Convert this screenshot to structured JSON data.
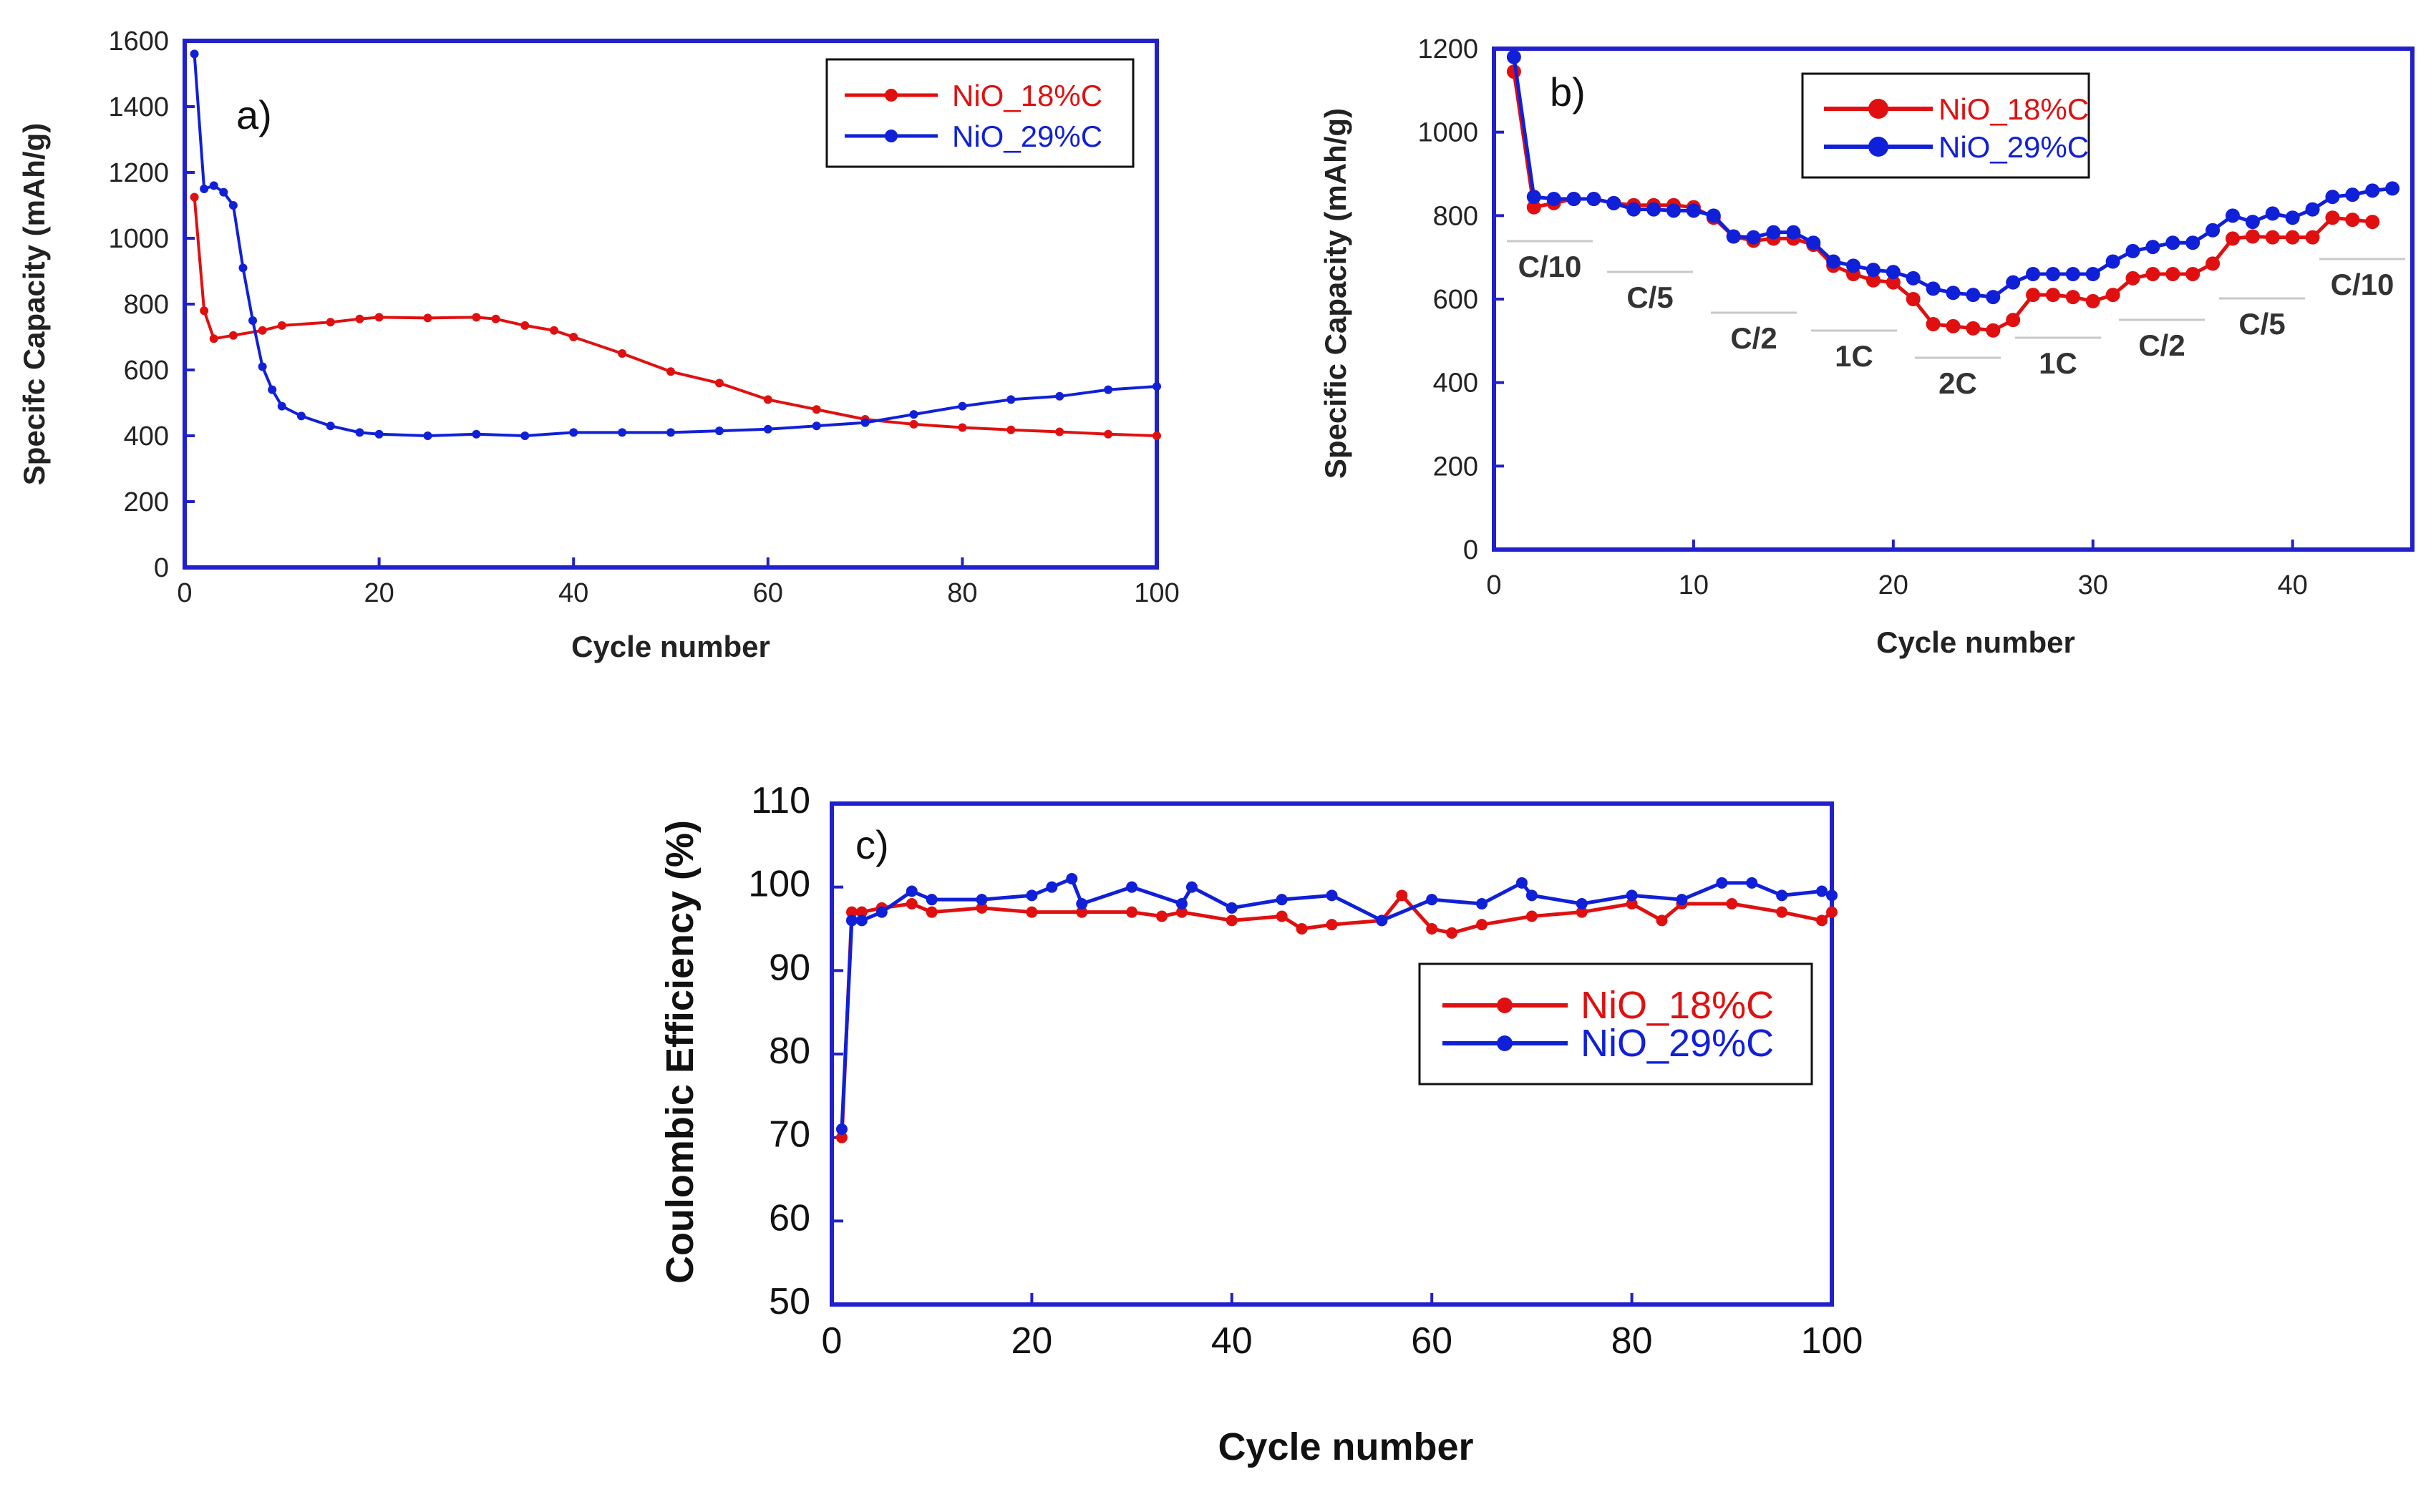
{
  "colors": {
    "red": "#e01010",
    "blue": "#1020d8",
    "frame": "#2020cc"
  },
  "chart_data": [
    {
      "type": "line",
      "panel": "a)",
      "xlabel": "Cycle number",
      "ylabel": "Specifc Capacity (mAh/g)",
      "xlim": [
        0,
        100
      ],
      "ylim": [
        0,
        1600
      ],
      "xticks": [
        0,
        20,
        40,
        60,
        80,
        100
      ],
      "yticks": [
        0,
        200,
        400,
        600,
        800,
        1000,
        1200,
        1400,
        1600
      ],
      "legend_position": "top-right",
      "series": [
        {
          "name": "NiO_18%C",
          "color": "#e01010",
          "x": [
            1,
            2,
            3,
            5,
            8,
            10,
            15,
            18,
            20,
            25,
            30,
            32,
            35,
            38,
            40,
            45,
            50,
            55,
            60,
            65,
            70,
            75,
            80,
            85,
            90,
            95,
            100
          ],
          "y": [
            1125,
            780,
            695,
            705,
            720,
            735,
            745,
            755,
            760,
            758,
            760,
            755,
            735,
            720,
            700,
            650,
            595,
            560,
            510,
            480,
            450,
            435,
            425,
            418,
            412,
            405,
            400
          ]
        },
        {
          "name": "NiO_29%C",
          "color": "#1020d8",
          "x": [
            1,
            2,
            3,
            4,
            5,
            6,
            7,
            8,
            9,
            10,
            12,
            15,
            18,
            20,
            25,
            30,
            35,
            40,
            45,
            50,
            55,
            60,
            65,
            70,
            75,
            80,
            85,
            90,
            95,
            100
          ],
          "y": [
            1560,
            1150,
            1160,
            1140,
            1100,
            910,
            750,
            610,
            540,
            490,
            460,
            430,
            410,
            405,
            400,
            405,
            400,
            410,
            410,
            410,
            415,
            420,
            430,
            440,
            465,
            490,
            510,
            520,
            540,
            550
          ]
        }
      ]
    },
    {
      "type": "line",
      "panel": "b)",
      "xlabel": "Cycle number",
      "ylabel": "Specific Capacity (mAh/g)",
      "xlim": [
        0,
        46
      ],
      "ylim": [
        0,
        1200
      ],
      "xticks": [
        0,
        10,
        20,
        30,
        40
      ],
      "yticks": [
        0,
        200,
        400,
        600,
        800,
        1000,
        1200
      ],
      "legend_position": "top-center",
      "rates": [
        "C/10",
        "C/5",
        "C/2",
        "1C",
        "2C",
        "1C",
        "C/2",
        "C/5",
        "C/10"
      ],
      "series": [
        {
          "name": "NiO_18%C",
          "color": "#e01010",
          "x": [
            1,
            2,
            3,
            4,
            5,
            6,
            7,
            8,
            9,
            10,
            11,
            12,
            13,
            14,
            15,
            16,
            17,
            18,
            19,
            20,
            21,
            22,
            23,
            24,
            25,
            26,
            27,
            28,
            29,
            30,
            31,
            32,
            33,
            34,
            35,
            36,
            37,
            38,
            39,
            40,
            41,
            42,
            43,
            44
          ],
          "y": [
            1145,
            820,
            830,
            840,
            840,
            830,
            825,
            825,
            825,
            820,
            795,
            750,
            740,
            745,
            745,
            730,
            680,
            660,
            645,
            640,
            600,
            540,
            535,
            530,
            525,
            550,
            610,
            610,
            605,
            595,
            610,
            650,
            660,
            660,
            660,
            685,
            745,
            750,
            748,
            748,
            748,
            795,
            790,
            785
          ]
        },
        {
          "name": "NiO_29%C",
          "color": "#1020d8",
          "x": [
            1,
            2,
            3,
            4,
            5,
            6,
            7,
            8,
            9,
            10,
            11,
            12,
            13,
            14,
            15,
            16,
            17,
            18,
            19,
            20,
            21,
            22,
            23,
            24,
            25,
            26,
            27,
            28,
            29,
            30,
            31,
            32,
            33,
            34,
            35,
            36,
            37,
            38,
            39,
            40,
            41,
            42,
            43,
            44,
            45
          ],
          "y": [
            1180,
            845,
            840,
            840,
            840,
            830,
            815,
            815,
            812,
            812,
            800,
            750,
            748,
            760,
            760,
            735,
            690,
            680,
            670,
            665,
            650,
            625,
            615,
            610,
            605,
            640,
            660,
            660,
            660,
            660,
            690,
            715,
            725,
            735,
            735,
            765,
            800,
            785,
            805,
            795,
            815,
            845,
            850,
            860,
            865
          ]
        }
      ]
    },
    {
      "type": "line",
      "panel": "c)",
      "xlabel": "Cycle number",
      "ylabel": "Coulombic Efficiency (%)",
      "xlim": [
        0,
        100
      ],
      "ylim": [
        50,
        110
      ],
      "xticks": [
        0,
        20,
        40,
        60,
        80,
        100
      ],
      "yticks": [
        50,
        60,
        70,
        80,
        90,
        100,
        110
      ],
      "legend_position": "center-right",
      "series": [
        {
          "name": "NiO_18%C",
          "color": "#e01010",
          "x": [
            1,
            2,
            3,
            5,
            8,
            10,
            15,
            20,
            25,
            30,
            33,
            35,
            40,
            45,
            47,
            50,
            55,
            57,
            60,
            62,
            65,
            70,
            75,
            80,
            83,
            85,
            90,
            95,
            99,
            100
          ],
          "y": [
            70,
            97,
            97,
            97.5,
            98,
            97,
            97.5,
            97,
            97,
            97,
            96.5,
            97,
            96,
            96.5,
            95,
            95.5,
            96,
            99,
            95,
            94.5,
            95.5,
            96.5,
            97,
            98,
            96,
            98,
            98,
            97,
            96,
            97
          ]
        },
        {
          "name": "NiO_29%C",
          "color": "#1020d8",
          "x": [
            1,
            2,
            3,
            5,
            8,
            10,
            15,
            20,
            22,
            24,
            25,
            30,
            35,
            36,
            40,
            45,
            50,
            55,
            60,
            65,
            69,
            70,
            75,
            80,
            85,
            89,
            92,
            95,
            99,
            100
          ],
          "y": [
            71,
            96,
            96,
            97,
            99.5,
            98.5,
            98.5,
            99,
            100,
            101,
            98,
            100,
            98,
            100,
            97.5,
            98.5,
            99,
            96,
            98.5,
            98,
            100.5,
            99,
            98,
            99,
            98.5,
            100.5,
            100.5,
            99,
            99.5,
            99
          ]
        }
      ]
    }
  ]
}
